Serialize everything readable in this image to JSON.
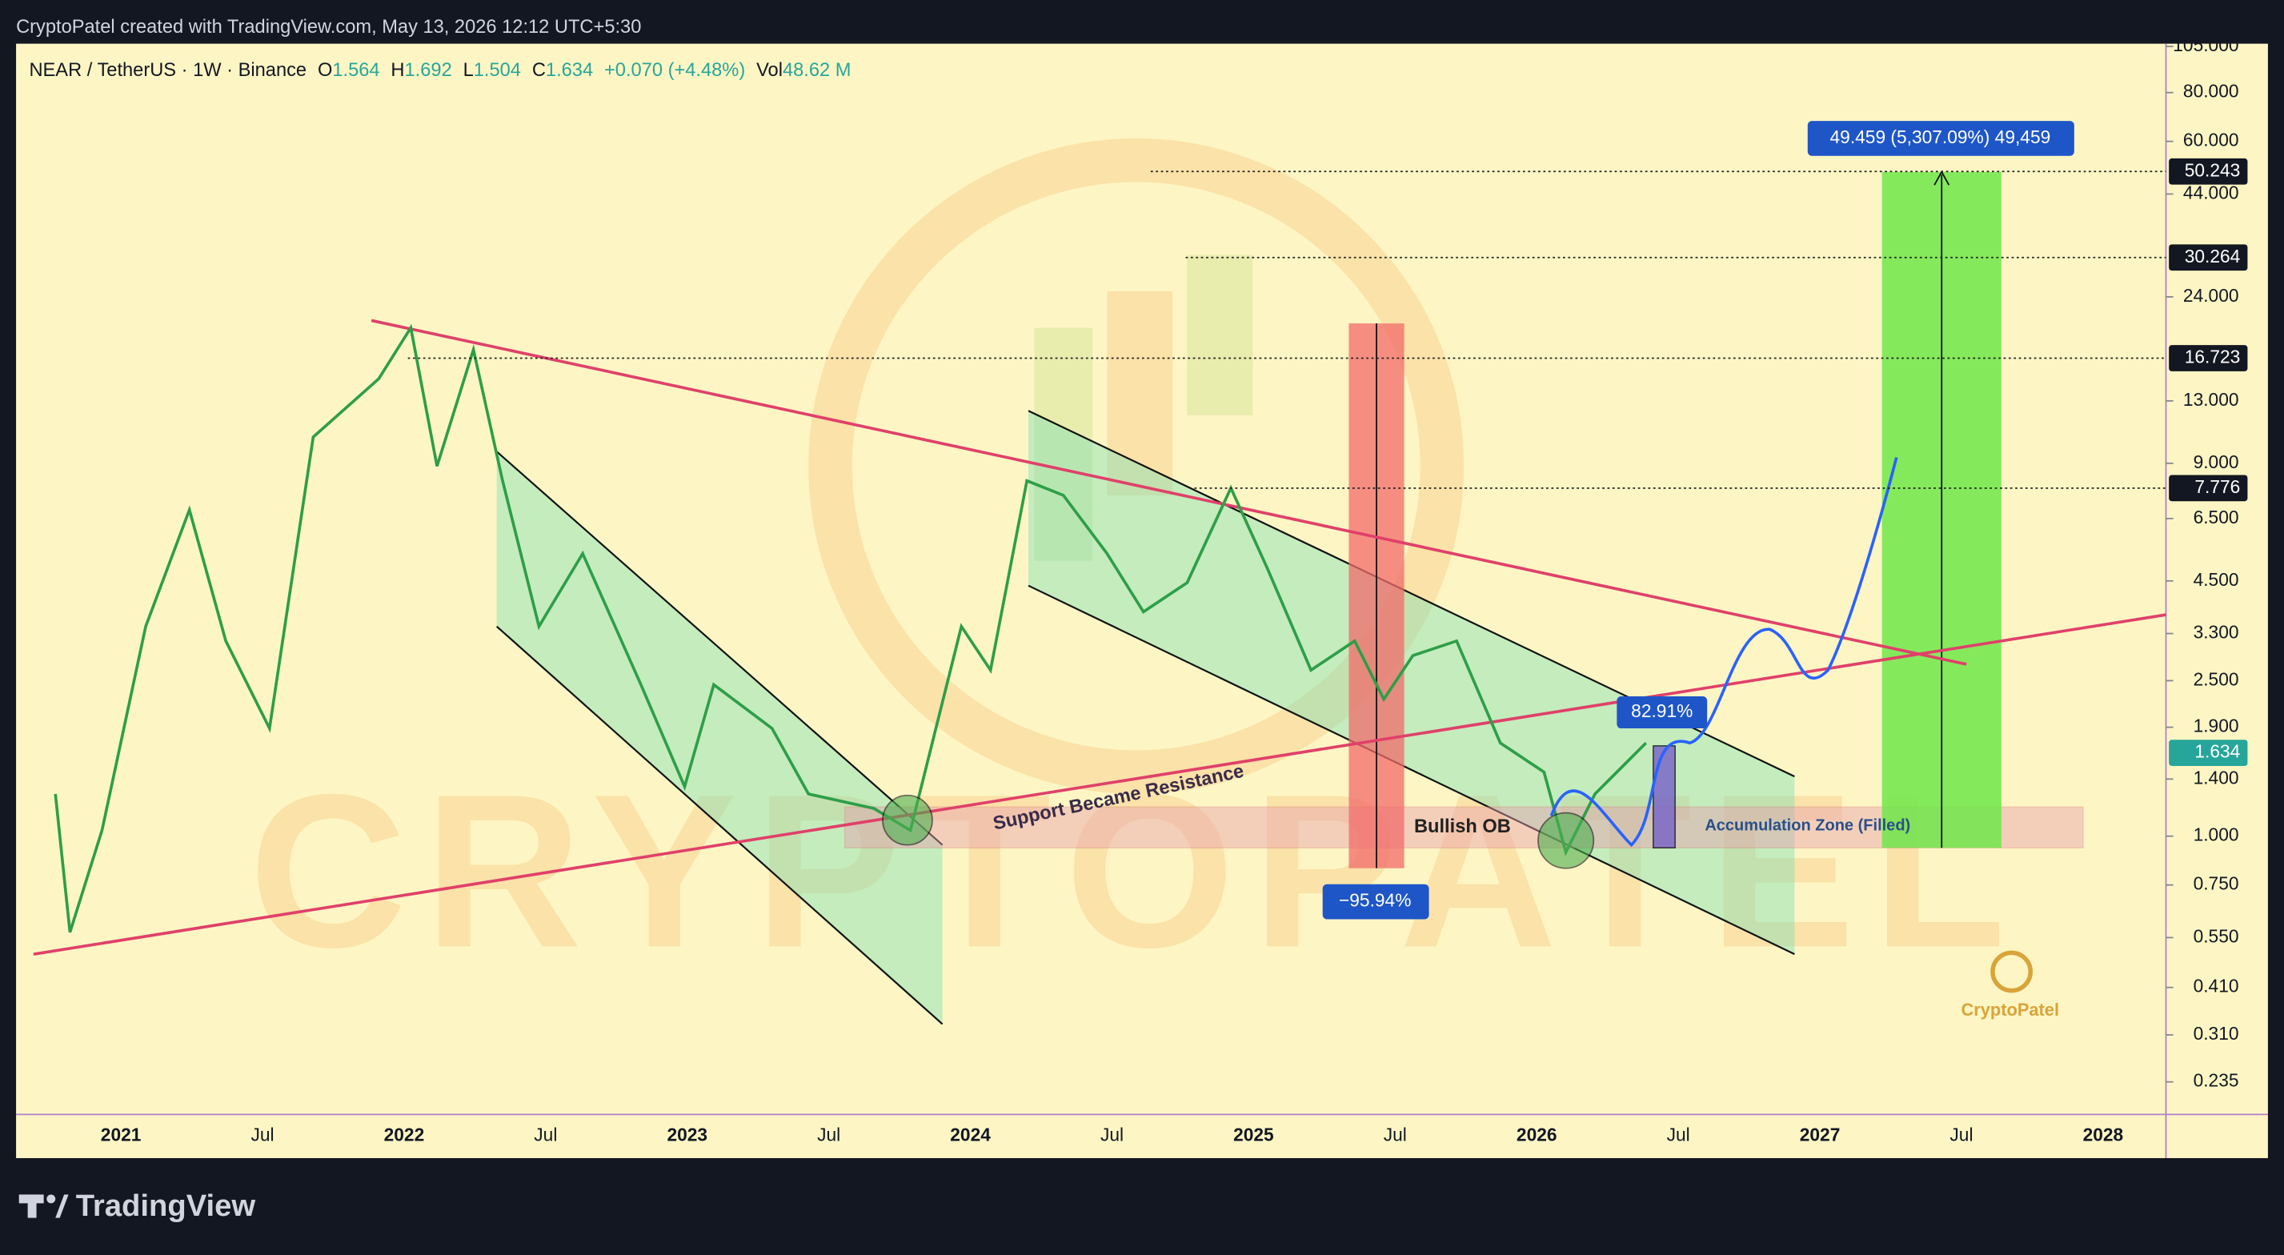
{
  "header": {
    "text": "CryptoPatel created with TradingView.com, May 13, 2026 12:12 UTC+5:30"
  },
  "legend": {
    "symbol": "NEAR / TetherUS · 1W · Binance",
    "open_label": "O",
    "open": "1.564",
    "high_label": "H",
    "high": "1.692",
    "low_label": "L",
    "low": "1.504",
    "close_label": "C",
    "close": "1.634",
    "change": "+0.070 (+4.48%)",
    "volume_label": "Vol",
    "volume": "48.62 M"
  },
  "price_axis": {
    "log_scale": true,
    "ylim": [
      0.194,
      106.7
    ],
    "ticks": [
      {
        "value": 105,
        "label": "105.000"
      },
      {
        "value": 80,
        "label": "80.000"
      },
      {
        "value": 60,
        "label": "60.000"
      },
      {
        "value": 44,
        "label": "44.000"
      },
      {
        "value": 24,
        "label": "24.000"
      },
      {
        "value": 13,
        "label": "13.000"
      },
      {
        "value": 9,
        "label": "9.000"
      },
      {
        "value": 6.5,
        "label": "6.500"
      },
      {
        "value": 4.5,
        "label": "4.500"
      },
      {
        "value": 3.3,
        "label": "3.300"
      },
      {
        "value": 2.5,
        "label": "2.500"
      },
      {
        "value": 1.9,
        "label": "1.900"
      },
      {
        "value": 1.4,
        "label": "1.400"
      },
      {
        "value": 1,
        "label": "1.000"
      },
      {
        "value": 0.75,
        "label": "0.750"
      },
      {
        "value": 0.55,
        "label": "0.550"
      },
      {
        "value": 0.41,
        "label": "0.410"
      },
      {
        "value": 0.31,
        "label": "0.310"
      },
      {
        "value": 0.235,
        "label": "0.235"
      }
    ],
    "level_labels": [
      {
        "value": 50.243,
        "label": "50.243",
        "color": "#131722"
      },
      {
        "value": 30.264,
        "label": "30.264",
        "color": "#131722"
      },
      {
        "value": 16.723,
        "label": "16.723",
        "color": "#131722"
      },
      {
        "value": 7.776,
        "label": "7.776",
        "color": "#131722"
      },
      {
        "value": 1.634,
        "label": "1.634",
        "color": "#26a69a"
      }
    ]
  },
  "time_axis": {
    "labels": [
      "2021",
      "Jul",
      "2022",
      "Jul",
      "2023",
      "Jul",
      "2024",
      "Jul",
      "2025",
      "Jul",
      "2026",
      "Jul",
      "2027",
      "Jul",
      "2028"
    ]
  },
  "annotations": {
    "target": "49.459 (5,307.09%) 49,459",
    "bounce": "82.91%",
    "drop": "−95.94%",
    "support": "Support Became Resistance",
    "bullish_ob": "Bullish OB",
    "accumulation": "Accumulation Zone (Filled)",
    "watermark": "CryptoPatel"
  },
  "footer": {
    "logo": "TradingView"
  }
}
